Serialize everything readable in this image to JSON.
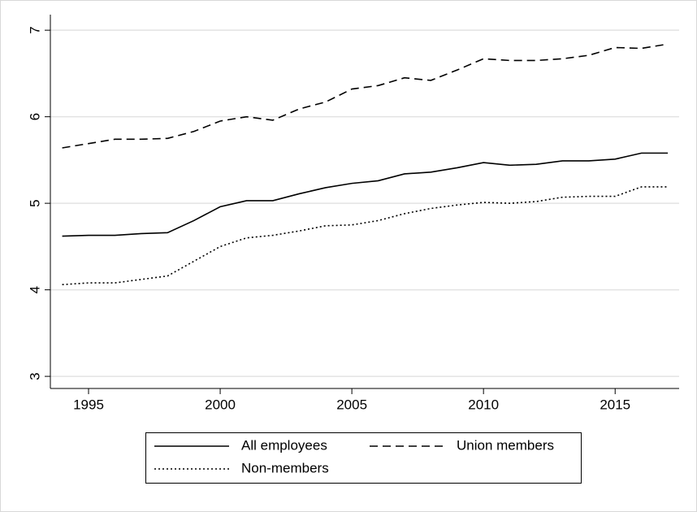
{
  "chart_data": {
    "type": "line",
    "x": [
      1994,
      1995,
      1996,
      1997,
      1998,
      1999,
      2000,
      2001,
      2002,
      2003,
      2004,
      2005,
      2006,
      2007,
      2008,
      2009,
      2010,
      2011,
      2012,
      2013,
      2014,
      2015,
      2016,
      2017
    ],
    "series": [
      {
        "name": "All employees",
        "color": "#000000",
        "style": "solid",
        "values": [
          4.62,
          4.63,
          4.63,
          4.65,
          4.66,
          4.8,
          4.96,
          5.03,
          5.03,
          5.11,
          5.18,
          5.23,
          5.26,
          5.34,
          5.36,
          5.41,
          5.47,
          5.44,
          5.45,
          5.49,
          5.49,
          5.51,
          5.58,
          5.58
        ]
      },
      {
        "name": "Union members",
        "color": "#000000",
        "style": "dashed",
        "values": [
          5.64,
          5.69,
          5.74,
          5.74,
          5.75,
          5.83,
          5.95,
          6.0,
          5.96,
          6.09,
          6.17,
          6.32,
          6.36,
          6.45,
          6.42,
          6.54,
          6.67,
          6.65,
          6.65,
          6.67,
          6.71,
          6.8,
          6.79,
          6.84
        ]
      },
      {
        "name": "Non-members",
        "color": "#000000",
        "style": "dotted",
        "values": [
          4.06,
          4.08,
          4.08,
          4.12,
          4.16,
          4.33,
          4.5,
          4.6,
          4.63,
          4.68,
          4.74,
          4.75,
          4.8,
          4.88,
          4.94,
          4.98,
          5.01,
          5.0,
          5.02,
          5.07,
          5.08,
          5.08,
          5.19,
          5.19
        ]
      }
    ],
    "xlim": [
      1993.55,
      2017.43
    ],
    "xticks": [
      1995,
      2000,
      2005,
      2010,
      2015
    ],
    "ylim": [
      2.86,
      7.18
    ],
    "yticks": [
      3,
      4,
      5,
      6,
      7
    ],
    "grid": true,
    "legend": "bottom"
  }
}
